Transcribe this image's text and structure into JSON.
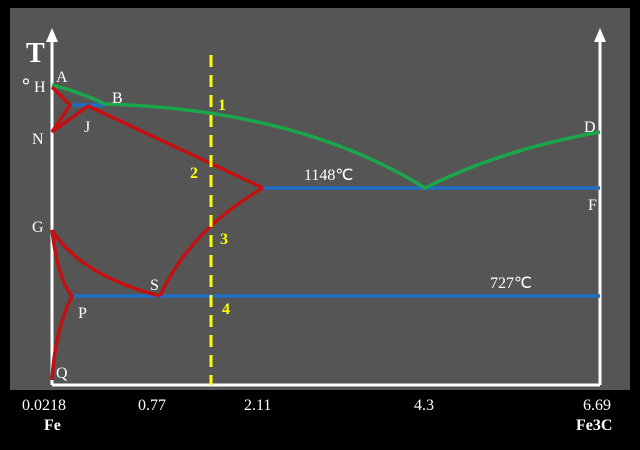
{
  "axis": {
    "y_label": "T",
    "degree": "°"
  },
  "points": [
    "A",
    "H",
    "B",
    "J",
    "N",
    "D",
    "F",
    "G",
    "S",
    "P",
    "Q"
  ],
  "temperatures": [
    "1148℃",
    "727℃"
  ],
  "markers": [
    "1",
    "2",
    "3",
    "4"
  ],
  "x_labels": [
    "0.0218",
    "0.77",
    "2.11",
    "4.3",
    "6.69"
  ],
  "components": [
    "Fe",
    "Fe3C"
  ]
}
